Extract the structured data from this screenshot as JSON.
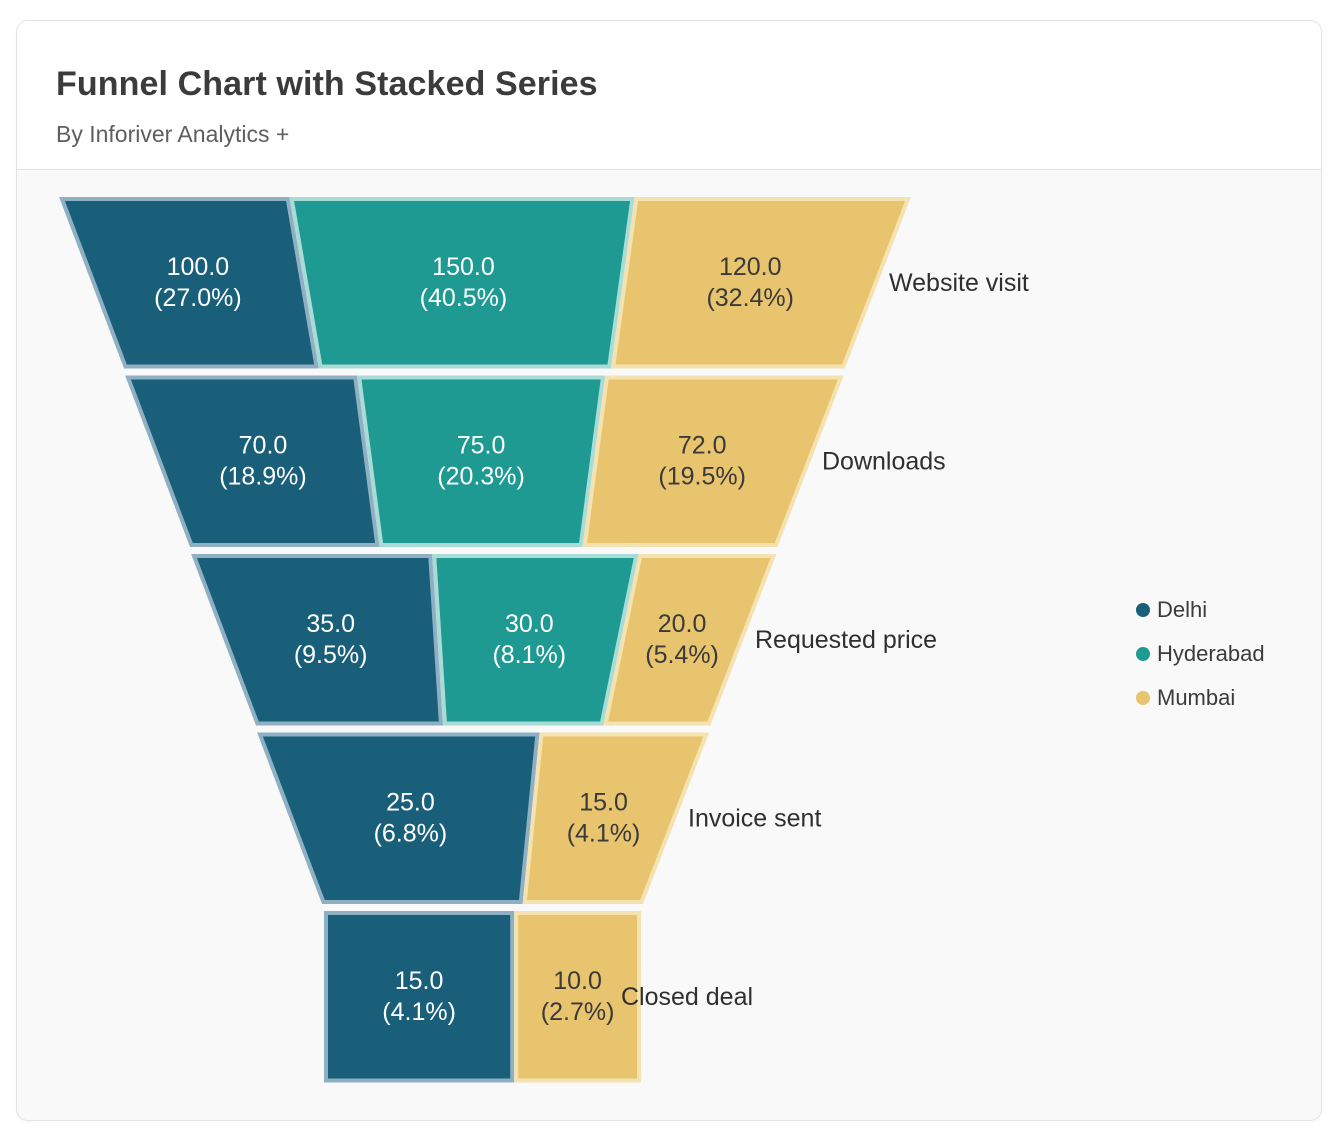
{
  "header": {
    "title": "Funnel Chart with Stacked Series",
    "subtitle": "By Inforiver Analytics +"
  },
  "colors": {
    "Delhi": "#1a5f7a",
    "Hyderabad": "#1e9a93",
    "Mumbai": "#e8c46e",
    "border_Delhi": "#8fb0c2",
    "border_Hyderabad": "#a9dcd6",
    "border_Mumbai": "#f4e2b0"
  },
  "chart_data": {
    "type": "funnel",
    "title": "Funnel Chart with Stacked Series",
    "stages": [
      "Website visit",
      "Downloads",
      "Requested price",
      "Invoice sent",
      "Closed deal"
    ],
    "series": [
      {
        "name": "Delhi",
        "values": [
          100.0,
          70.0,
          35.0,
          25.0,
          15.0
        ],
        "percent_labels": [
          "(27.0%)",
          "(18.9%)",
          "(9.5%)",
          "(6.8%)",
          "(4.1%)"
        ]
      },
      {
        "name": "Hyderabad",
        "values": [
          150.0,
          75.0,
          30.0,
          null,
          null
        ],
        "percent_labels": [
          "(40.5%)",
          "(20.3%)",
          "(8.1%)",
          null,
          null
        ]
      },
      {
        "name": "Mumbai",
        "values": [
          120.0,
          72.0,
          20.0,
          15.0,
          10.0
        ],
        "percent_labels": [
          "(32.4%)",
          "(19.5%)",
          "(5.4%)",
          "(4.1%)",
          "(2.7%)"
        ]
      }
    ],
    "value_labels": [
      [
        "100.0",
        "70.0",
        "35.0",
        "25.0",
        "15.0"
      ],
      [
        "150.0",
        "75.0",
        "30.0",
        null,
        null
      ],
      [
        "120.0",
        "72.0",
        "20.0",
        "15.0",
        "10.0"
      ]
    ],
    "legend": {
      "position": "right",
      "entries": [
        "Delhi",
        "Hyderabad",
        "Mumbai"
      ]
    }
  }
}
